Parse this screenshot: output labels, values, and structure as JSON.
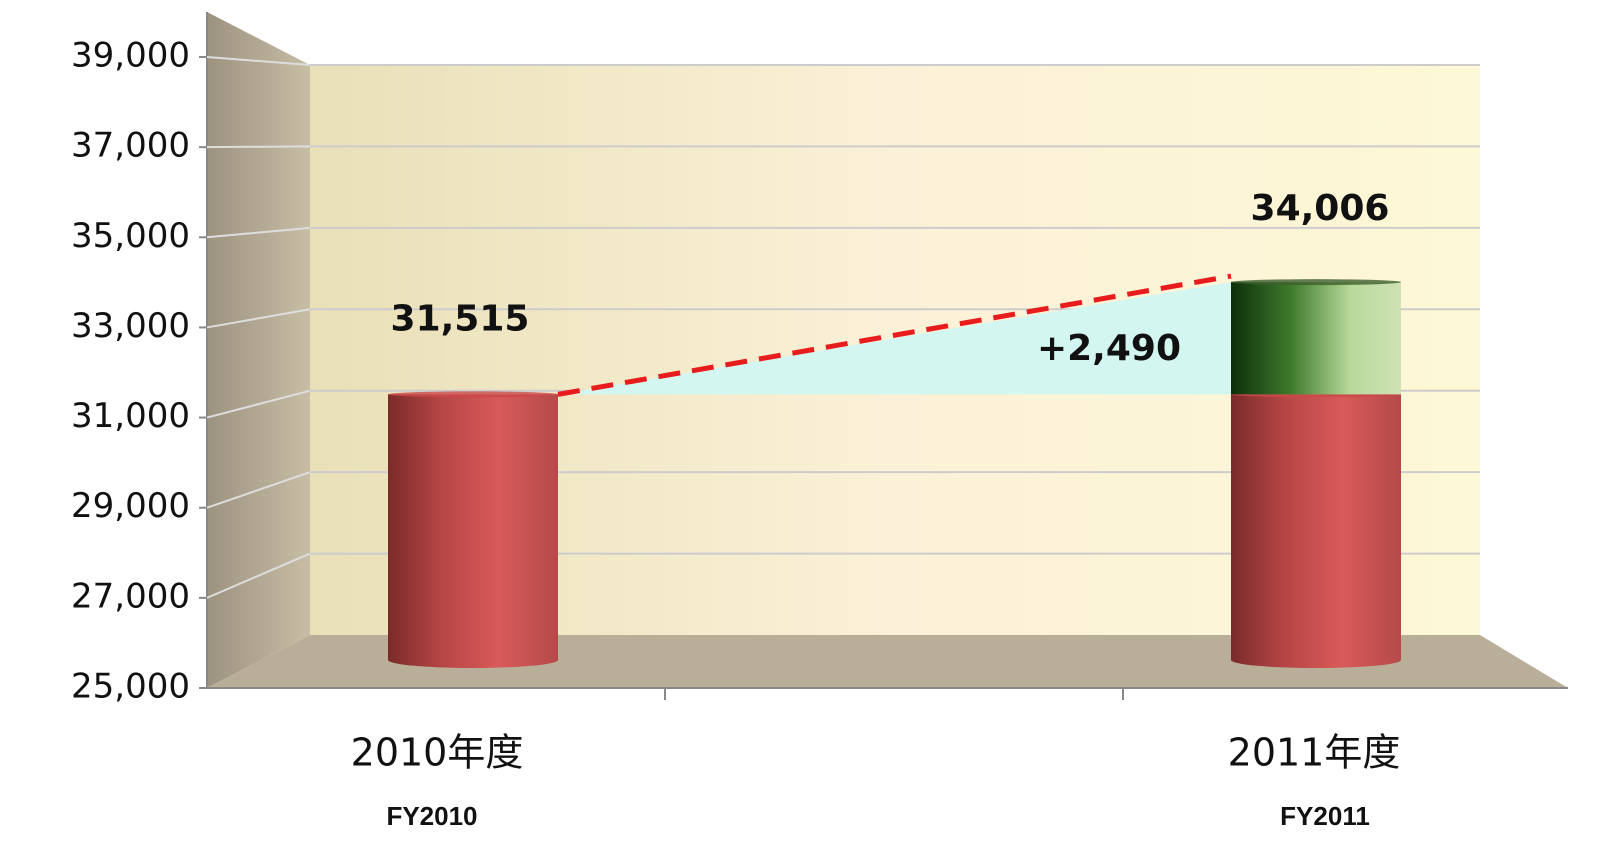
{
  "chart_data": {
    "type": "bar3d_stacked",
    "categories": [
      "2010年度",
      "2011年度"
    ],
    "sublabels": [
      "FY2010",
      "FY2011"
    ],
    "series": [
      {
        "color": "#c9484a",
        "values": [
          31515,
          31515
        ]
      },
      {
        "color": "#2f6d1c",
        "values": [
          null,
          2490
        ],
        "value_labels": [
          null,
          "+2,490"
        ]
      }
    ],
    "totals": [
      31515,
      34006
    ],
    "total_labels": [
      "31,515",
      "34,006"
    ],
    "ylim": [
      25000,
      39000
    ],
    "yticks": [
      {
        "value": 25000,
        "label": "25,000"
      },
      {
        "value": 27000,
        "label": "27,000"
      },
      {
        "value": 29000,
        "label": "29,000"
      },
      {
        "value": 31000,
        "label": "31,000"
      },
      {
        "value": 33000,
        "label": "33,000"
      },
      {
        "value": 35000,
        "label": "35,000"
      },
      {
        "value": 37000,
        "label": "37,000"
      },
      {
        "value": 39000,
        "label": "39,000"
      }
    ],
    "grid": true
  }
}
